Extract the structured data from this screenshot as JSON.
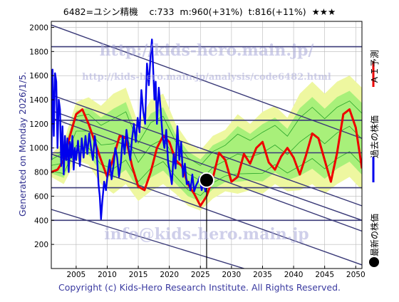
{
  "header": {
    "code_name": "6482=ユシン精機",
    "current": "c:733",
    "mid": "m:960(+31%)",
    "target": "t:816(+11%)",
    "rating": "★★★"
  },
  "side_text": "Generated on Monday 2026/1/5.",
  "copyright": "Copyright (c) Kids-Hero Research Institute. All Rights Reserved.",
  "watermarks": {
    "top_url": "http://kids-hero.main.jp/",
    "sub_url": "http://kids-hero.main.jp/analysis/code6482.html",
    "email": "info@kids-hero.main.jp"
  },
  "legend": [
    {
      "label": "ＡＩ予測",
      "color": "#ee0000",
      "kind": "line"
    },
    {
      "label": "過去の株価",
      "color": "#0000ee",
      "kind": "line"
    },
    {
      "label": "最新の株価",
      "color": "#000000",
      "kind": "dot"
    }
  ],
  "colors": {
    "history": "#0000ee",
    "prediction": "#ee0000",
    "band_outer": "#eef7a0",
    "band_inner": "#a8f07a",
    "band_lines": "#2aa52a",
    "trend_lines": "#3a3a78",
    "grid": "#b8b8b8"
  },
  "chart_data": {
    "type": "line",
    "xlim": [
      2001,
      2051
    ],
    "ylim": [
      0,
      2050
    ],
    "x_ticks": [
      2005,
      2010,
      2015,
      2020,
      2025,
      2030,
      2035,
      2040,
      2045,
      2050
    ],
    "y_ticks": [
      200,
      400,
      600,
      800,
      1000,
      1200,
      1400,
      1600,
      1800,
      2000
    ],
    "grid": true,
    "latest_point": {
      "x": 2026.0,
      "y": 733
    },
    "marker_line_x": 2026.0,
    "horizontal_levels": [
      1840,
      1230,
      960,
      670,
      400
    ],
    "trend_lines": [
      {
        "x": [
          2001,
          2051
        ],
        "y": [
          2020,
          1080
        ]
      },
      {
        "x": [
          2001,
          2051
        ],
        "y": [
          1440,
          520
        ]
      },
      {
        "x": [
          2001,
          2051
        ],
        "y": [
          1310,
          400
        ]
      },
      {
        "x": [
          2001,
          2051
        ],
        "y": [
          1250,
          310
        ]
      },
      {
        "x": [
          2001,
          2051
        ],
        "y": [
          950,
          30
        ]
      },
      {
        "x": [
          2001,
          2051
        ],
        "y": [
          490,
          -300
        ]
      }
    ],
    "series": [
      {
        "name": "過去の株価",
        "x": [
          2001.0,
          2001.2,
          2001.4,
          2001.6,
          2001.8,
          2002.0,
          2002.2,
          2002.4,
          2002.6,
          2002.8,
          2003.0,
          2003.2,
          2003.4,
          2003.6,
          2003.8,
          2004.0,
          2004.2,
          2004.4,
          2004.6,
          2004.8,
          2005.0,
          2005.3,
          2005.6,
          2005.9,
          2006.2,
          2006.5,
          2006.8,
          2007.1,
          2007.4,
          2007.7,
          2008.0,
          2008.3,
          2008.6,
          2008.8,
          2009.0,
          2009.2,
          2009.5,
          2009.8,
          2010.1,
          2010.4,
          2010.7,
          2011.0,
          2011.3,
          2011.6,
          2011.9,
          2012.2,
          2012.5,
          2012.8,
          2013.1,
          2013.4,
          2013.7,
          2014.0,
          2014.3,
          2014.6,
          2014.9,
          2015.2,
          2015.5,
          2015.8,
          2016.1,
          2016.4,
          2016.7,
          2017.0,
          2017.2,
          2017.4,
          2017.6,
          2017.8,
          2018.0,
          2018.3,
          2018.6,
          2018.9,
          2019.2,
          2019.5,
          2019.8,
          2020.1,
          2020.4,
          2020.7,
          2021.0,
          2021.3,
          2021.6,
          2021.9,
          2022.2,
          2022.5,
          2022.8,
          2023.1,
          2023.4,
          2023.7,
          2024.0,
          2024.3,
          2024.6,
          2024.9,
          2025.2,
          2025.5,
          2025.8,
          2026.0
        ],
        "y": [
          900,
          1650,
          1100,
          1620,
          1550,
          1000,
          1400,
          1320,
          850,
          1180,
          780,
          1100,
          900,
          1080,
          800,
          1050,
          920,
          1100,
          820,
          1000,
          900,
          1060,
          850,
          1080,
          920,
          1100,
          950,
          1120,
          1000,
          900,
          1100,
          980,
          700,
          600,
          410,
          550,
          720,
          650,
          800,
          900,
          740,
          850,
          1000,
          920,
          760,
          880,
          1100,
          950,
          1150,
          1020,
          900,
          1080,
          1200,
          1050,
          1250,
          1130,
          1480,
          1300,
          1200,
          1700,
          1520,
          1780,
          1900,
          1650,
          1400,
          1550,
          1200,
          1500,
          1320,
          1100,
          1000,
          1150,
          880,
          800,
          700,
          950,
          830,
          1180,
          900,
          1050,
          760,
          870,
          700,
          720,
          650,
          780,
          640,
          690,
          720,
          760,
          650,
          720,
          640,
          733
        ]
      },
      {
        "name": "ＡＩ予測",
        "x": [
          2001.0,
          2002.0,
          2003.0,
          2004.0,
          2005.0,
          2006.0,
          2007.0,
          2008.0,
          2009.0,
          2010.0,
          2011.0,
          2012.0,
          2013.0,
          2014.0,
          2015.0,
          2016.0,
          2017.0,
          2018.0,
          2019.0,
          2020.0,
          2021.0,
          2022.0,
          2023.0,
          2024.0,
          2025.0,
          2026.0,
          2027.0,
          2028.0,
          2029.0,
          2030.0,
          2031.0,
          2032.0,
          2033.0,
          2034.0,
          2035.0,
          2036.0,
          2037.0,
          2038.0,
          2039.0,
          2040.0,
          2041.0,
          2042.0,
          2043.0,
          2044.0,
          2045.0,
          2046.0,
          2047.0,
          2048.0,
          2049.0,
          2050.0,
          2051.0
        ],
        "y": [
          800,
          820,
          900,
          1100,
          1280,
          1320,
          1200,
          1050,
          900,
          760,
          920,
          1100,
          1080,
          850,
          680,
          650,
          800,
          1000,
          1100,
          1050,
          900,
          850,
          700,
          620,
          520,
          600,
          750,
          960,
          900,
          720,
          760,
          950,
          870,
          1000,
          1050,
          880,
          820,
          930,
          1000,
          920,
          780,
          940,
          1120,
          1080,
          900,
          720,
          960,
          1280,
          1320,
          1170,
          830
        ]
      }
    ],
    "band": {
      "x": [
        2001,
        2003,
        2005,
        2007,
        2009,
        2011,
        2013,
        2015,
        2017,
        2019,
        2021,
        2023,
        2025,
        2027,
        2029,
        2031,
        2033,
        2035,
        2037,
        2039,
        2041,
        2043,
        2045,
        2047,
        2049,
        2051
      ],
      "upper": [
        950,
        1050,
        1380,
        1420,
        1350,
        1450,
        1500,
        1200,
        1400,
        1450,
        1200,
        1050,
        980,
        1100,
        1150,
        1280,
        1200,
        1300,
        1350,
        1250,
        1450,
        1550,
        1450,
        1550,
        1600,
        1500
      ],
      "lower": [
        760,
        700,
        900,
        860,
        700,
        620,
        700,
        560,
        640,
        700,
        620,
        520,
        480,
        580,
        640,
        620,
        650,
        620,
        700,
        640,
        650,
        700,
        620,
        700,
        760,
        650
      ]
    }
  }
}
